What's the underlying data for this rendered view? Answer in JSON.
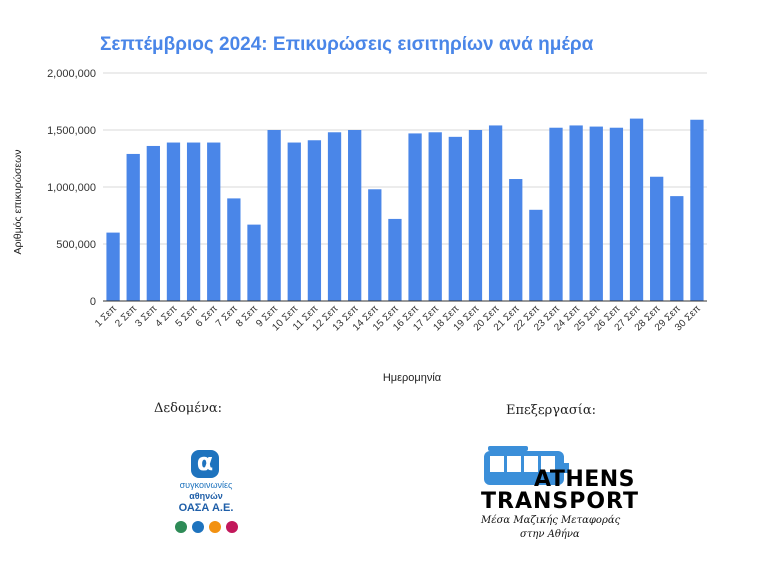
{
  "chart_data": {
    "type": "bar",
    "title": "Σεπτέμβριος 2024: Επικυρώσεις εισιτηρίων ανά ημέρα",
    "xlabel": "Ημερομηνία",
    "ylabel": "Αριθμός επικυρώσεων",
    "ylim": [
      0,
      2000000
    ],
    "yticks": [
      "0",
      "500,000",
      "1,000,000",
      "1,500,000",
      "2,000,000"
    ],
    "ytick_values": [
      0,
      500000,
      1000000,
      1500000,
      2000000
    ],
    "grid": true,
    "color": "#4a86e8",
    "categories": [
      "1 Σεπ",
      "2 Σεπ",
      "3 Σεπ",
      "4 Σεπ",
      "5 Σεπ",
      "6 Σεπ",
      "7 Σεπ",
      "8 Σεπ",
      "9 Σεπ",
      "10 Σεπ",
      "11 Σεπ",
      "12 Σεπ",
      "13 Σεπ",
      "14 Σεπ",
      "15 Σεπ",
      "16 Σεπ",
      "17 Σεπ",
      "18 Σεπ",
      "19 Σεπ",
      "20 Σεπ",
      "21 Σεπ",
      "22 Σεπ",
      "23 Σεπ",
      "24 Σεπ",
      "25 Σεπ",
      "26 Σεπ",
      "27 Σεπ",
      "28 Σεπ",
      "29 Σεπ",
      "30 Σεπ"
    ],
    "values": [
      600000,
      1290000,
      1360000,
      1390000,
      1390000,
      1390000,
      900000,
      670000,
      1500000,
      1390000,
      1410000,
      1480000,
      1500000,
      980000,
      720000,
      1470000,
      1480000,
      1440000,
      1500000,
      1540000,
      1070000,
      800000,
      1520000,
      1540000,
      1530000,
      1520000,
      1600000,
      1090000,
      920000,
      1590000
    ]
  },
  "credits": {
    "data_label": "Δεδομένα:",
    "processing_label": "Επεξεργασία:"
  },
  "oasa_logo": {
    "mark": "α",
    "line1": "συγκοινωνίες",
    "line2": "αθηνών",
    "line3": "ΟΑΣΑ Α.Ε.",
    "colors": [
      "#2e8b57",
      "#1e73be",
      "#f29111",
      "#c2185b"
    ]
  },
  "athens_transport_logo": {
    "line1": "ATHENS",
    "line2": "TRANSPORT",
    "sub1": "Μέσα Μαζικής Μεταφοράς",
    "sub2": "στην Αθήνα",
    "bus_color": "#3b8fd9"
  }
}
